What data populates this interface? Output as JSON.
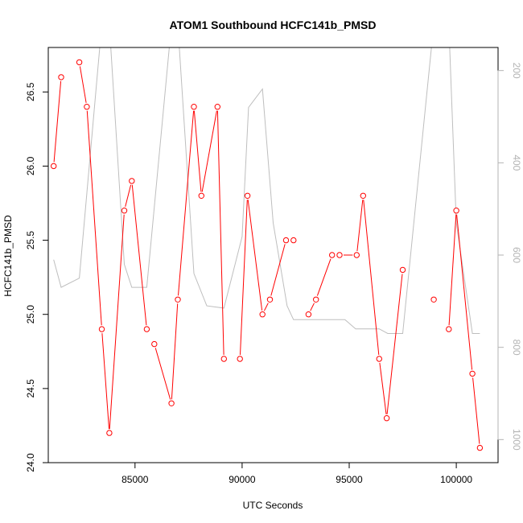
{
  "chart_data": {
    "type": "line",
    "title": "ATOM1 Southbound HCFC141b_PMSD",
    "xlabel": "UTC Seconds",
    "ylabel": "HCFC141b_PMSD",
    "xlim": [
      80950,
      101950
    ],
    "ylim": [
      24.0,
      26.8
    ],
    "x_ticks": [
      85000,
      90000,
      95000,
      100000
    ],
    "y_ticks": [
      24.0,
      24.5,
      25.0,
      25.5,
      26.0,
      26.5
    ],
    "y2lim": [
      1050,
      150
    ],
    "y2_ticks": [
      200,
      400,
      600,
      800,
      1000
    ],
    "series": [
      {
        "color": "#ff0000",
        "axis": "left",
        "markers": true,
        "x": [
          81200,
          81550,
          82400,
          82750,
          83450,
          83800,
          84500,
          84850,
          85550,
          85900,
          86700,
          87000,
          87750,
          88100,
          88850,
          89150,
          89900,
          90250,
          90950,
          91300,
          92050,
          92400,
          93100,
          93450,
          94200,
          94550,
          95350,
          95650,
          96400,
          96750,
          97500,
          98950,
          99650,
          100000,
          100750,
          101100
        ],
        "y": [
          26.0,
          26.6,
          26.7,
          26.4,
          24.9,
          24.2,
          25.7,
          25.9,
          24.9,
          24.8,
          24.4,
          25.1,
          26.4,
          25.8,
          26.4,
          24.7,
          24.7,
          25.8,
          25.0,
          25.1,
          25.5,
          25.5,
          25.0,
          25.1,
          25.4,
          25.4,
          25.4,
          25.8,
          24.7,
          24.3,
          25.3,
          25.1,
          24.9,
          25.7,
          24.6,
          24.1
        ],
        "breaks_after_index": [
          1,
          8,
          15,
          21,
          24,
          30,
          31
        ]
      },
      {
        "color": "#bebebe",
        "axis": "right",
        "markers": false,
        "x": [
          81200,
          81550,
          82400,
          83450,
          83800,
          84500,
          84850,
          85550,
          86700,
          87000,
          87750,
          88350,
          89150,
          90000,
          90300,
          90950,
          91450,
          92100,
          92400,
          93450,
          94800,
          95300,
          96400,
          96800,
          97500,
          98950,
          99650,
          100000,
          100750,
          101100
        ],
        "y": [
          610,
          670,
          650,
          100,
          100,
          620,
          670,
          670,
          100,
          100,
          640,
          710,
          715,
          560,
          280,
          240,
          530,
          710,
          740,
          740,
          740,
          760,
          760,
          770,
          770,
          100,
          100,
          530,
          770,
          770
        ]
      }
    ]
  },
  "colors": {
    "primary_series": "#ff0000",
    "secondary_series": "#bebebe",
    "right_axis": "#b3b3b3",
    "axis": "#000000"
  }
}
